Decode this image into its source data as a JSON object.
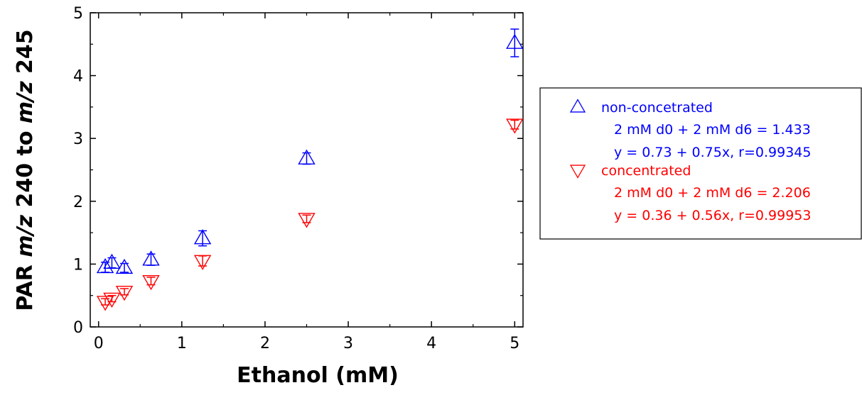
{
  "chart_data": {
    "type": "scatter",
    "xlabel": "Ethanol (mM)",
    "ylabel_parts": [
      {
        "text": "PAR ",
        "italic": false
      },
      {
        "text": "m/z",
        "italic": true
      },
      {
        "text": " 240 to ",
        "italic": false
      },
      {
        "text": "m/z",
        "italic": true
      },
      {
        "text": " 245",
        "italic": false
      }
    ],
    "xlim": [
      -0.1,
      5.1
    ],
    "ylim": [
      0,
      5
    ],
    "xticks": [
      0,
      1,
      2,
      3,
      4,
      5
    ],
    "yticks": [
      0,
      1,
      2,
      3,
      4,
      5
    ],
    "minor_x_step": 0.5,
    "minor_y_step": 0.5,
    "grid": false,
    "legend_position": "right",
    "series": [
      {
        "name": "non-concetrated",
        "marker": "triangle-up",
        "color": "#0000ff",
        "points": [
          {
            "x": 0.08,
            "y": 0.95,
            "err": 0.08
          },
          {
            "x": 0.16,
            "y": 1.02,
            "err": 0.08
          },
          {
            "x": 0.31,
            "y": 0.94,
            "err": 0.07
          },
          {
            "x": 0.63,
            "y": 1.07,
            "err": 0.09
          },
          {
            "x": 1.25,
            "y": 1.41,
            "err": 0.12
          },
          {
            "x": 2.5,
            "y": 2.68,
            "err": 0.09
          },
          {
            "x": 5.0,
            "y": 4.52,
            "err": 0.22
          }
        ],
        "legend_lines": [
          "2 mM d0 + 2 mM d6 = 1.433",
          "y = 0.73 + 0.75x, r=0.99345"
        ]
      },
      {
        "name": "concentrated",
        "marker": "triangle-down",
        "color": "#ff0000",
        "points": [
          {
            "x": 0.08,
            "y": 0.4,
            "err": 0.05
          },
          {
            "x": 0.16,
            "y": 0.45,
            "err": 0.05
          },
          {
            "x": 0.31,
            "y": 0.56,
            "err": 0.05
          },
          {
            "x": 0.63,
            "y": 0.73,
            "err": 0.06
          },
          {
            "x": 1.25,
            "y": 1.05,
            "err": 0.08
          },
          {
            "x": 2.5,
            "y": 1.72,
            "err": 0.06
          },
          {
            "x": 5.0,
            "y": 3.22,
            "err": 0.07
          }
        ],
        "legend_lines": [
          "2 mM d0 + 2 mM d6 = 2.206",
          "y = 0.36 + 0.56x, r=0.99953"
        ]
      }
    ]
  }
}
